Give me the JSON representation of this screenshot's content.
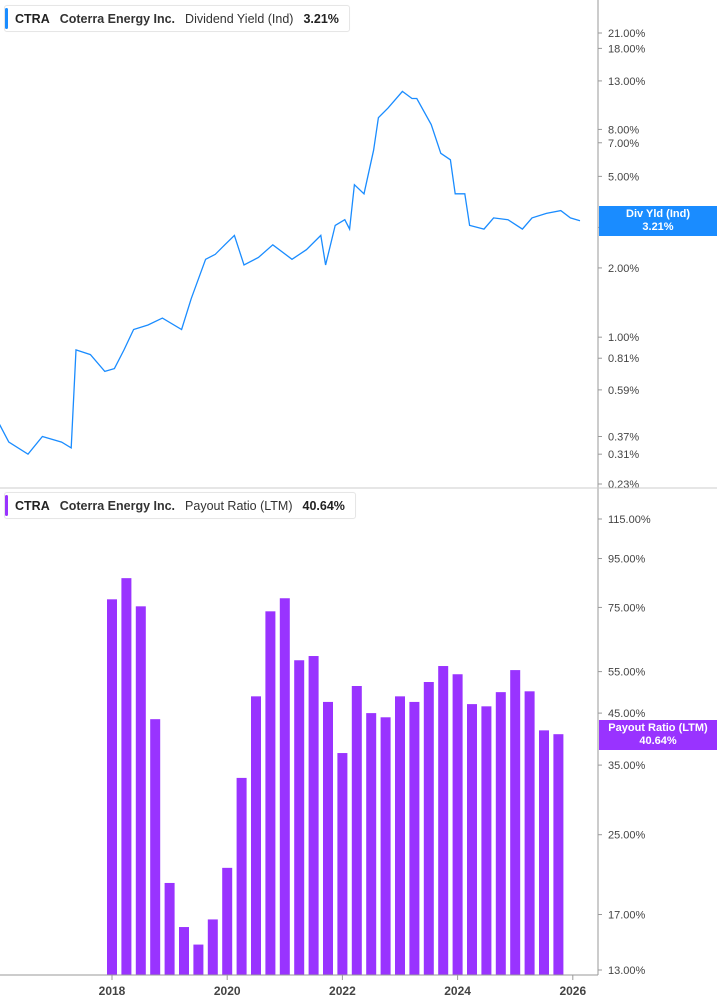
{
  "top_legend": {
    "ticker": "CTRA",
    "company": "Coterra Energy Inc.",
    "metric": "Dividend Yield (Ind)",
    "value": "3.21%",
    "color": "#1a8cff"
  },
  "top_tag": {
    "label": "Div Yld (Ind)",
    "value": "3.21%"
  },
  "bottom_legend": {
    "ticker": "CTRA",
    "company": "Coterra Energy Inc.",
    "metric": "Payout Ratio (LTM)",
    "value": "40.64%",
    "color": "#9933ff"
  },
  "bottom_tag": {
    "label": "Payout Ratio (LTM)",
    "value": "40.64%"
  },
  "chart_data": [
    {
      "type": "line",
      "scale": "log",
      "color": "#1a8cff",
      "ylim": [
        0.23,
        21
      ],
      "xlim": [
        "2016-01",
        "2026-03"
      ],
      "y_tick_labels": [
        "21.00%",
        "18.00%",
        "13.00%",
        "8.00%",
        "7.00%",
        "5.00%",
        "3.00%",
        "2.00%",
        "1.00%",
        "0.81%",
        "0.59%",
        "0.37%",
        "0.31%",
        "0.23%"
      ],
      "y_ticks": [
        21,
        18,
        13,
        8,
        7,
        5,
        3,
        2,
        1,
        0.81,
        0.59,
        0.37,
        0.31,
        0.23
      ],
      "x": [
        "2016-01",
        "2016-03",
        "2016-07",
        "2016-10",
        "2017-02",
        "2017-04",
        "2017-05",
        "2017-08",
        "2017-11",
        "2018-01",
        "2018-03",
        "2018-05",
        "2018-08",
        "2018-11",
        "2019-03",
        "2019-05",
        "2019-08",
        "2019-10",
        "2019-12",
        "2020-02",
        "2020-04",
        "2020-07",
        "2020-10",
        "2021-02",
        "2021-05",
        "2021-08",
        "2021-09",
        "2021-11",
        "2022-01",
        "2022-02",
        "2022-03",
        "2022-05",
        "2022-07",
        "2022-08",
        "2022-10",
        "2023-01",
        "2023-03",
        "2023-04",
        "2023-07",
        "2023-09",
        "2023-11",
        "2023-12",
        "2024-02",
        "2024-03",
        "2024-06",
        "2024-08",
        "2024-11",
        "2025-02",
        "2025-04",
        "2025-07",
        "2025-10",
        "2025-12",
        "2026-02"
      ],
      "y": [
        0.42,
        0.35,
        0.31,
        0.37,
        0.35,
        0.33,
        0.88,
        0.84,
        0.71,
        0.73,
        0.88,
        1.08,
        1.13,
        1.21,
        1.08,
        1.47,
        2.18,
        2.29,
        2.52,
        2.77,
        2.06,
        2.22,
        2.52,
        2.18,
        2.4,
        2.77,
        2.06,
        3.06,
        3.24,
        2.95,
        4.6,
        4.2,
        6.5,
        9.0,
        9.9,
        11.7,
        10.9,
        10.9,
        8.4,
        6.3,
        5.9,
        4.2,
        4.2,
        3.06,
        2.95,
        3.3,
        3.24,
        2.95,
        3.3,
        3.45,
        3.55,
        3.3,
        3.21
      ]
    },
    {
      "type": "bar",
      "scale": "log",
      "color": "#9933ff",
      "ylim": [
        13,
        115
      ],
      "y_tick_labels": [
        "115.00%",
        "95.00%",
        "75.00%",
        "55.00%",
        "45.00%",
        "35.00%",
        "25.00%",
        "17.00%",
        "13.00%"
      ],
      "y_ticks": [
        115,
        95,
        75,
        55,
        45,
        35,
        25,
        17,
        13
      ],
      "x_tick_labels": [
        "2018",
        "2020",
        "2022",
        "2024",
        "2026"
      ],
      "x_ticks": [
        2018,
        2020,
        2022,
        2024,
        2026
      ],
      "categories": [
        "2017-12",
        "2018-03",
        "2018-06",
        "2018-09",
        "2018-12",
        "2019-03",
        "2019-06",
        "2019-09",
        "2019-12",
        "2020-03",
        "2020-06",
        "2020-09",
        "2020-12",
        "2021-03",
        "2021-06",
        "2021-09",
        "2021-12",
        "2022-03",
        "2022-06",
        "2022-09",
        "2022-12",
        "2023-03",
        "2023-06",
        "2023-09",
        "2023-12",
        "2024-03",
        "2024-06",
        "2024-09",
        "2024-12",
        "2025-03",
        "2025-06",
        "2025-09"
      ],
      "values": [
        78.0,
        86.4,
        75.4,
        43.7,
        19.8,
        16.0,
        14.7,
        16.6,
        21.3,
        32.9,
        48.8,
        73.6,
        78.4,
        58.1,
        59.3,
        47.5,
        37.1,
        51.3,
        45.0,
        44.1,
        48.8,
        47.5,
        52.3,
        56.5,
        54.3,
        47.0,
        46.5,
        49.8,
        55.4,
        50.0,
        41.4,
        40.64
      ]
    }
  ]
}
